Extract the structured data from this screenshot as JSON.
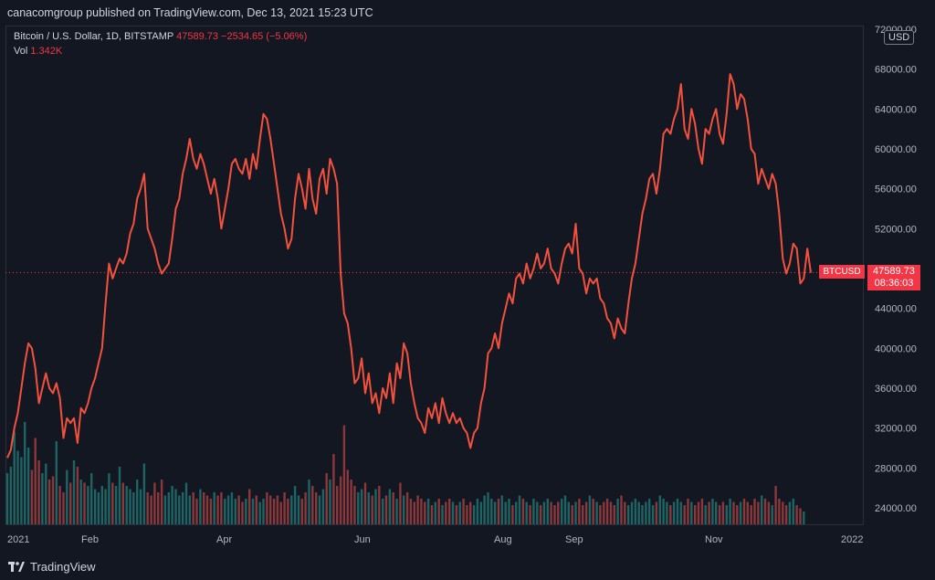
{
  "header": {
    "published": "canacomgroup published on TradingView.com, Dec 13, 2021 15:23 UTC"
  },
  "legend": {
    "symbol": "Bitcoin / U.S. Dollar, 1D, BITSTAMP",
    "price": "47589.73",
    "change": "−2534.65 (−5.06%)",
    "vol_label": "Vol",
    "vol_value": "1.342K"
  },
  "currency": "USD",
  "price_label": {
    "symbol": "BTCUSD",
    "price": "47589.73",
    "countdown": "08:36:03"
  },
  "footer": {
    "brand": "TradingView"
  },
  "colors": {
    "line": "#f4513d",
    "accent": "#f23645",
    "vol_up": "#26a69a",
    "vol_down": "#ef5350",
    "bg": "#131722"
  },
  "chart_data": {
    "type": "line",
    "title": "Bitcoin / U.S. Dollar, 1D, BITSTAMP",
    "xlabel": "",
    "ylabel": "",
    "ylim": [
      21500,
      73000
    ],
    "grid": false,
    "x_ticks": [
      "2021",
      "Feb",
      "Apr",
      "Jun",
      "Aug",
      "Sep",
      "Nov",
      "2022"
    ],
    "y_ticks": [
      "72000.00",
      "68000.00",
      "64000.00",
      "60000.00",
      "56000.00",
      "52000.00",
      "48000.00",
      "44000.00",
      "40000.00",
      "36000.00",
      "32000.00",
      "28000.00",
      "24000.00"
    ],
    "last_price": 47589.73,
    "series": [
      {
        "values": [
          29000,
          29800,
          32000,
          33500,
          36000,
          38500,
          40500,
          40000,
          38000,
          34500,
          36000,
          37500,
          36000,
          35500,
          36500,
          35000,
          31000,
          33000,
          32500,
          33000,
          30500,
          34000,
          33500,
          34500,
          36000,
          37000,
          38500,
          40000,
          44500,
          48500,
          47000,
          48000,
          49000,
          48500,
          49500,
          51500,
          52500,
          55000,
          56000,
          57500,
          52000,
          51000,
          50000,
          48500,
          47500,
          48000,
          48500,
          51000,
          54000,
          55000,
          57500,
          59000,
          61000,
          59000,
          58000,
          59500,
          58500,
          57000,
          55500,
          57000,
          55000,
          52000,
          54000,
          56000,
          58500,
          59000,
          58000,
          57500,
          59000,
          57000,
          59500,
          58000,
          61000,
          63500,
          63000,
          61000,
          58500,
          56000,
          53500,
          52000,
          50000,
          51000,
          55000,
          57500,
          56000,
          54000,
          58000,
          55000,
          53500,
          57000,
          58000,
          55500,
          59000,
          58000,
          56500,
          47500,
          43500,
          42500,
          40000,
          36500,
          37000,
          39000,
          35500,
          37500,
          34500,
          35500,
          33500,
          36000,
          35000,
          37500,
          34500,
          38500,
          37000,
          40500,
          39500,
          36500,
          34500,
          33000,
          32500,
          31500,
          34000,
          33000,
          34500,
          32500,
          35000,
          33500,
          32500,
          33500,
          32500,
          33000,
          32000,
          31500,
          30000,
          31500,
          32000,
          34500,
          36000,
          39500,
          40000,
          41500,
          40000,
          42500,
          44000,
          45500,
          44500,
          47000,
          47500,
          46500,
          48500,
          47000,
          48000,
          49500,
          48000,
          48500,
          50000,
          48000,
          47500,
          46500,
          48500,
          50000,
          50500,
          49500,
          52500,
          48000,
          47500,
          45500,
          47000,
          46500,
          47000,
          45000,
          44500,
          43000,
          42500,
          41000,
          43000,
          42000,
          41500,
          44500,
          47000,
          48500,
          51000,
          53500,
          55000,
          57000,
          57500,
          55500,
          58000,
          61500,
          62000,
          61500,
          63000,
          64000,
          66500,
          62000,
          61000,
          64000,
          62500,
          60000,
          58500,
          62000,
          61500,
          63000,
          64000,
          61500,
          60500,
          63500,
          67500,
          66500,
          64000,
          65500,
          65000,
          63000,
          60000,
          59500,
          56500,
          58000,
          57000,
          56000,
          57500,
          56500,
          53500,
          49000,
          47500,
          48500,
          50500,
          50000,
          46500,
          47000,
          50000,
          47589.73
        ]
      }
    ],
    "volume": {
      "values": [
        1.6,
        1.8,
        2.9,
        2.3,
        2.1,
        3.2,
        2.4,
        1.7,
        2.7,
        2.0,
        1.6,
        1.9,
        1.4,
        1.5,
        2.6,
        1.2,
        1.0,
        1.7,
        1.3,
        2.0,
        1.8,
        1.4,
        1.3,
        1.2,
        1.6,
        1.1,
        1.0,
        1.2,
        1.1,
        1.6,
        1.3,
        1.2,
        1.8,
        1.3,
        1.2,
        1.1,
        1.0,
        1.4,
        1.1,
        1.9,
        1.0,
        0.9,
        1.3,
        1.0,
        1.4,
        0.9,
        1.0,
        1.2,
        1.1,
        0.9,
        1.0,
        1.3,
        0.9,
        1.0,
        0.8,
        1.1,
        1.0,
        0.9,
        0.8,
        1.0,
        0.9,
        1.0,
        0.8,
        0.9,
        1.0,
        0.8,
        0.9,
        0.7,
        0.8,
        1.1,
        0.8,
        0.9,
        0.7,
        0.8,
        1.0,
        0.9,
        0.8,
        0.9,
        0.7,
        1.0,
        0.8,
        0.9,
        1.2,
        0.9,
        0.8,
        1.0,
        1.4,
        1.2,
        1.0,
        0.9,
        1.1,
        1.6,
        1.4,
        2.2,
        1.2,
        1.5,
        3.1,
        1.7,
        1.4,
        1.2,
        1.0,
        1.1,
        1.3,
        1.0,
        0.9,
        1.1,
        1.2,
        0.8,
        0.9,
        1.1,
        1.0,
        0.8,
        1.3,
        0.9,
        1.0,
        0.8,
        0.7,
        0.9,
        0.8,
        0.7,
        0.8,
        0.6,
        0.7,
        0.8,
        0.6,
        0.7,
        0.8,
        0.7,
        0.6,
        0.7,
        0.8,
        0.6,
        0.7,
        0.6,
        0.8,
        0.7,
        0.9,
        1.0,
        0.8,
        0.7,
        0.8,
        0.9,
        0.7,
        0.8,
        0.6,
        0.7,
        0.9,
        0.8,
        0.7,
        0.6,
        0.8,
        0.7,
        0.6,
        0.7,
        0.8,
        0.7,
        0.6,
        0.7,
        0.8,
        0.9,
        0.7,
        0.6,
        0.7,
        0.8,
        0.6,
        0.7,
        0.9,
        0.8,
        0.7,
        0.6,
        0.7,
        0.8,
        0.7,
        0.6,
        0.8,
        0.9,
        0.7,
        0.6,
        0.7,
        0.8,
        0.7,
        0.6,
        0.7,
        0.8,
        0.6,
        0.7,
        0.9,
        0.8,
        0.7,
        0.6,
        0.7,
        0.8,
        0.7,
        0.6,
        0.8,
        0.7,
        0.6,
        0.7,
        0.8,
        0.6,
        0.7,
        0.8,
        0.7,
        0.6,
        0.7,
        0.6,
        0.8,
        0.7,
        0.6,
        0.7,
        0.8,
        0.7,
        0.6,
        0.8,
        0.7,
        0.9,
        0.8,
        0.7,
        0.6,
        1.2,
        0.8,
        0.7,
        0.6,
        0.7,
        0.8,
        0.6,
        0.5,
        0.4
      ]
    }
  }
}
